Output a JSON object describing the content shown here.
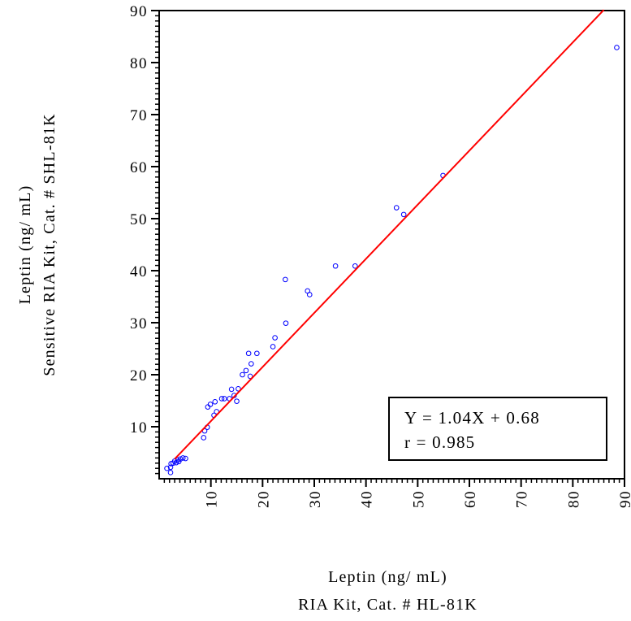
{
  "chart_data": {
    "type": "scatter",
    "xlabel_lines": [
      "Leptin (ng/ mL)",
      "RIA Kit, Cat. # HL-81K"
    ],
    "ylabel_lines": [
      "Leptin (ng/ mL)",
      "Sensitive RIA Kit, Cat. # SHL-81K"
    ],
    "xlim": [
      0,
      90
    ],
    "ylim": [
      0,
      90
    ],
    "x_ticks": [
      10,
      20,
      30,
      40,
      50,
      60,
      70,
      80,
      90
    ],
    "y_ticks": [
      10,
      20,
      30,
      40,
      50,
      60,
      70,
      80,
      90
    ],
    "grid": false,
    "point_color": "#0000ff",
    "line_color": "#ff0000",
    "regression": {
      "slope": 1.04,
      "intercept": 0.68,
      "x_start": 3,
      "x_end": 86
    },
    "annotation": {
      "equation": "Y = 1.04X + 0.68",
      "r_value": "r = 0.985"
    },
    "points": [
      [
        1.5,
        2.0
      ],
      [
        2.2,
        1.2
      ],
      [
        2.2,
        2.2
      ],
      [
        2.3,
        2.9
      ],
      [
        2.7,
        3.0
      ],
      [
        3.0,
        3.4
      ],
      [
        3.3,
        3.1
      ],
      [
        3.6,
        3.6
      ],
      [
        3.8,
        3.3
      ],
      [
        4.1,
        3.8
      ],
      [
        4.6,
        4.0
      ],
      [
        5.1,
        3.9
      ],
      [
        8.6,
        7.9
      ],
      [
        8.8,
        9.2
      ],
      [
        9.3,
        9.9
      ],
      [
        9.4,
        13.8
      ],
      [
        9.9,
        14.3
      ],
      [
        10.6,
        12.2
      ],
      [
        10.8,
        14.8
      ],
      [
        11.1,
        12.9
      ],
      [
        12.1,
        15.4
      ],
      [
        12.6,
        15.4
      ],
      [
        13.6,
        15.4
      ],
      [
        14.0,
        17.2
      ],
      [
        14.5,
        16.0
      ],
      [
        15.0,
        14.9
      ],
      [
        15.3,
        17.3
      ],
      [
        16.1,
        20.0
      ],
      [
        16.8,
        20.8
      ],
      [
        17.3,
        24.1
      ],
      [
        17.6,
        19.7
      ],
      [
        17.8,
        22.1
      ],
      [
        18.9,
        24.1
      ],
      [
        22.0,
        25.4
      ],
      [
        22.4,
        27.1
      ],
      [
        24.4,
        38.3
      ],
      [
        24.5,
        29.9
      ],
      [
        28.7,
        36.1
      ],
      [
        29.1,
        35.4
      ],
      [
        34.1,
        40.9
      ],
      [
        37.9,
        40.9
      ],
      [
        45.9,
        52.1
      ],
      [
        47.3,
        50.8
      ],
      [
        54.9,
        58.3
      ],
      [
        88.5,
        82.9
      ]
    ]
  }
}
